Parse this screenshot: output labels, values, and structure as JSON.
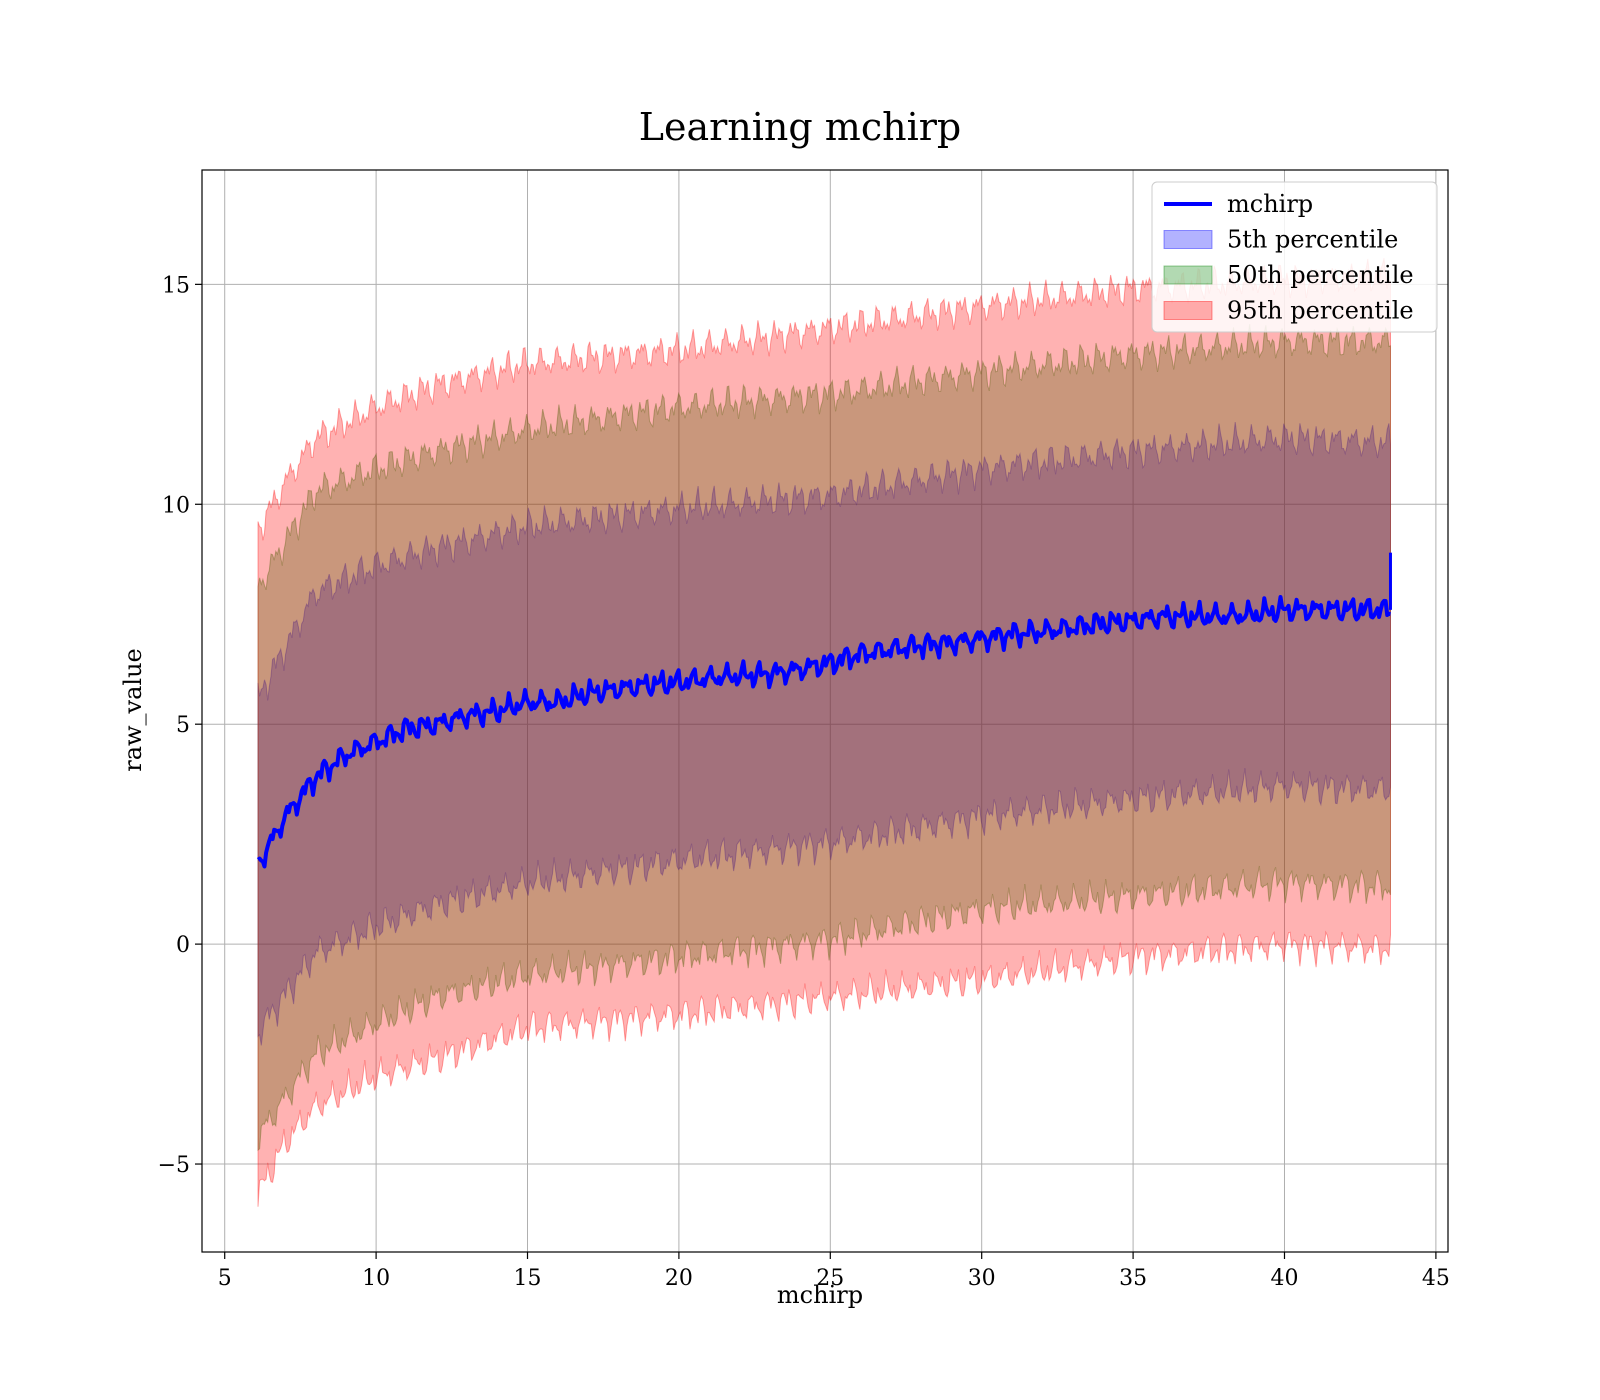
{
  "chart_data": {
    "type": "line",
    "title": "Learning mchirp",
    "xlabel": "mchirp",
    "ylabel": "raw_value",
    "xlim": [
      4.25,
      45.4
    ],
    "ylim": [
      -7,
      17.6
    ],
    "xticks": [
      5,
      10,
      15,
      20,
      25,
      30,
      35,
      40,
      45
    ],
    "yticks": [
      -5,
      0,
      5,
      10,
      15
    ],
    "grid": true,
    "legend_position": "top-right",
    "x_range": [
      6.1,
      43.5
    ],
    "median": {
      "name": "mchirp",
      "color": "#0000ff",
      "points": [
        [
          6.1,
          1.8
        ],
        [
          7,
          2.9
        ],
        [
          8,
          3.8
        ],
        [
          9,
          4.3
        ],
        [
          10,
          4.6
        ],
        [
          11,
          4.9
        ],
        [
          12,
          5.0
        ],
        [
          13,
          5.2
        ],
        [
          14,
          5.3
        ],
        [
          15,
          5.5
        ],
        [
          16,
          5.5
        ],
        [
          17,
          5.7
        ],
        [
          18,
          5.8
        ],
        [
          19,
          5.9
        ],
        [
          20,
          5.95
        ],
        [
          21,
          6.05
        ],
        [
          22,
          6.1
        ],
        [
          23,
          6.15
        ],
        [
          24,
          6.25
        ],
        [
          25,
          6.4
        ],
        [
          26,
          6.6
        ],
        [
          27,
          6.7
        ],
        [
          28,
          6.8
        ],
        [
          29,
          6.85
        ],
        [
          30,
          6.95
        ],
        [
          31,
          7.05
        ],
        [
          32,
          7.1
        ],
        [
          33,
          7.2
        ],
        [
          34,
          7.3
        ],
        [
          35,
          7.35
        ],
        [
          36,
          7.45
        ],
        [
          37,
          7.45
        ],
        [
          38,
          7.45
        ],
        [
          39,
          7.5
        ],
        [
          40,
          7.6
        ],
        [
          41,
          7.6
        ],
        [
          42,
          7.6
        ],
        [
          43.5,
          7.6
        ]
      ],
      "end_spike": 8.9
    },
    "bands": [
      {
        "name": "5th percentile",
        "color": "#0000ff",
        "opacity": 0.3,
        "upper": [
          [
            6.1,
            5.6
          ],
          [
            8,
            8.0
          ],
          [
            10,
            8.6
          ],
          [
            12,
            9.0
          ],
          [
            15,
            9.5
          ],
          [
            20,
            9.9
          ],
          [
            25,
            10.2
          ],
          [
            30,
            10.8
          ],
          [
            35,
            11.2
          ],
          [
            40,
            11.5
          ],
          [
            43.5,
            11.4
          ]
        ],
        "lower": [
          [
            6.1,
            -2.0
          ],
          [
            8,
            -0.2
          ],
          [
            10,
            0.4
          ],
          [
            12,
            0.9
          ],
          [
            15,
            1.4
          ],
          [
            20,
            1.9
          ],
          [
            25,
            2.3
          ],
          [
            30,
            2.9
          ],
          [
            35,
            3.3
          ],
          [
            40,
            3.6
          ],
          [
            43.5,
            3.5
          ]
        ]
      },
      {
        "name": "50th percentile",
        "color": "#008000",
        "opacity": 0.3,
        "upper": [
          [
            6.1,
            8.1
          ],
          [
            8,
            10.3
          ],
          [
            10,
            10.8
          ],
          [
            12,
            11.2
          ],
          [
            15,
            11.7
          ],
          [
            20,
            12.2
          ],
          [
            25,
            12.5
          ],
          [
            30,
            13.0
          ],
          [
            35,
            13.4
          ],
          [
            40,
            13.7
          ],
          [
            43.5,
            13.7
          ]
        ],
        "lower": [
          [
            6.1,
            -4.4
          ],
          [
            8,
            -2.5
          ],
          [
            10,
            -1.8
          ],
          [
            12,
            -1.2
          ],
          [
            15,
            -0.7
          ],
          [
            20,
            -0.3
          ],
          [
            25,
            0.1
          ],
          [
            30,
            0.8
          ],
          [
            35,
            1.1
          ],
          [
            40,
            1.4
          ],
          [
            43.5,
            1.3
          ]
        ]
      },
      {
        "name": "95th percentile",
        "color": "#ff0000",
        "opacity": 0.3,
        "upper": [
          [
            6.1,
            9.4
          ],
          [
            7,
            10.5
          ],
          [
            8,
            11.5
          ],
          [
            10,
            12.2
          ],
          [
            12,
            12.7
          ],
          [
            15,
            13.2
          ],
          [
            20,
            13.5
          ],
          [
            25,
            14.0
          ],
          [
            30,
            14.5
          ],
          [
            35,
            14.9
          ],
          [
            40,
            15.1
          ],
          [
            43.5,
            15.2
          ]
        ],
        "lower": [
          [
            6.1,
            -5.7
          ],
          [
            7,
            -4.5
          ],
          [
            8,
            -3.7
          ],
          [
            10,
            -3.0
          ],
          [
            12,
            -2.6
          ],
          [
            15,
            -1.9
          ],
          [
            20,
            -1.6
          ],
          [
            25,
            -1.2
          ],
          [
            30,
            -0.8
          ],
          [
            35,
            -0.3
          ],
          [
            40,
            0.0
          ],
          [
            43.5,
            -0.1
          ]
        ]
      }
    ],
    "legend": [
      {
        "label": "mchirp",
        "kind": "line",
        "color": "#0000ff"
      },
      {
        "label": "5th percentile",
        "kind": "patch",
        "color": "#0000ff"
      },
      {
        "label": "50th percentile",
        "kind": "patch",
        "color": "#008000"
      },
      {
        "label": "95th percentile",
        "kind": "patch",
        "color": "#ff0000"
      }
    ]
  }
}
